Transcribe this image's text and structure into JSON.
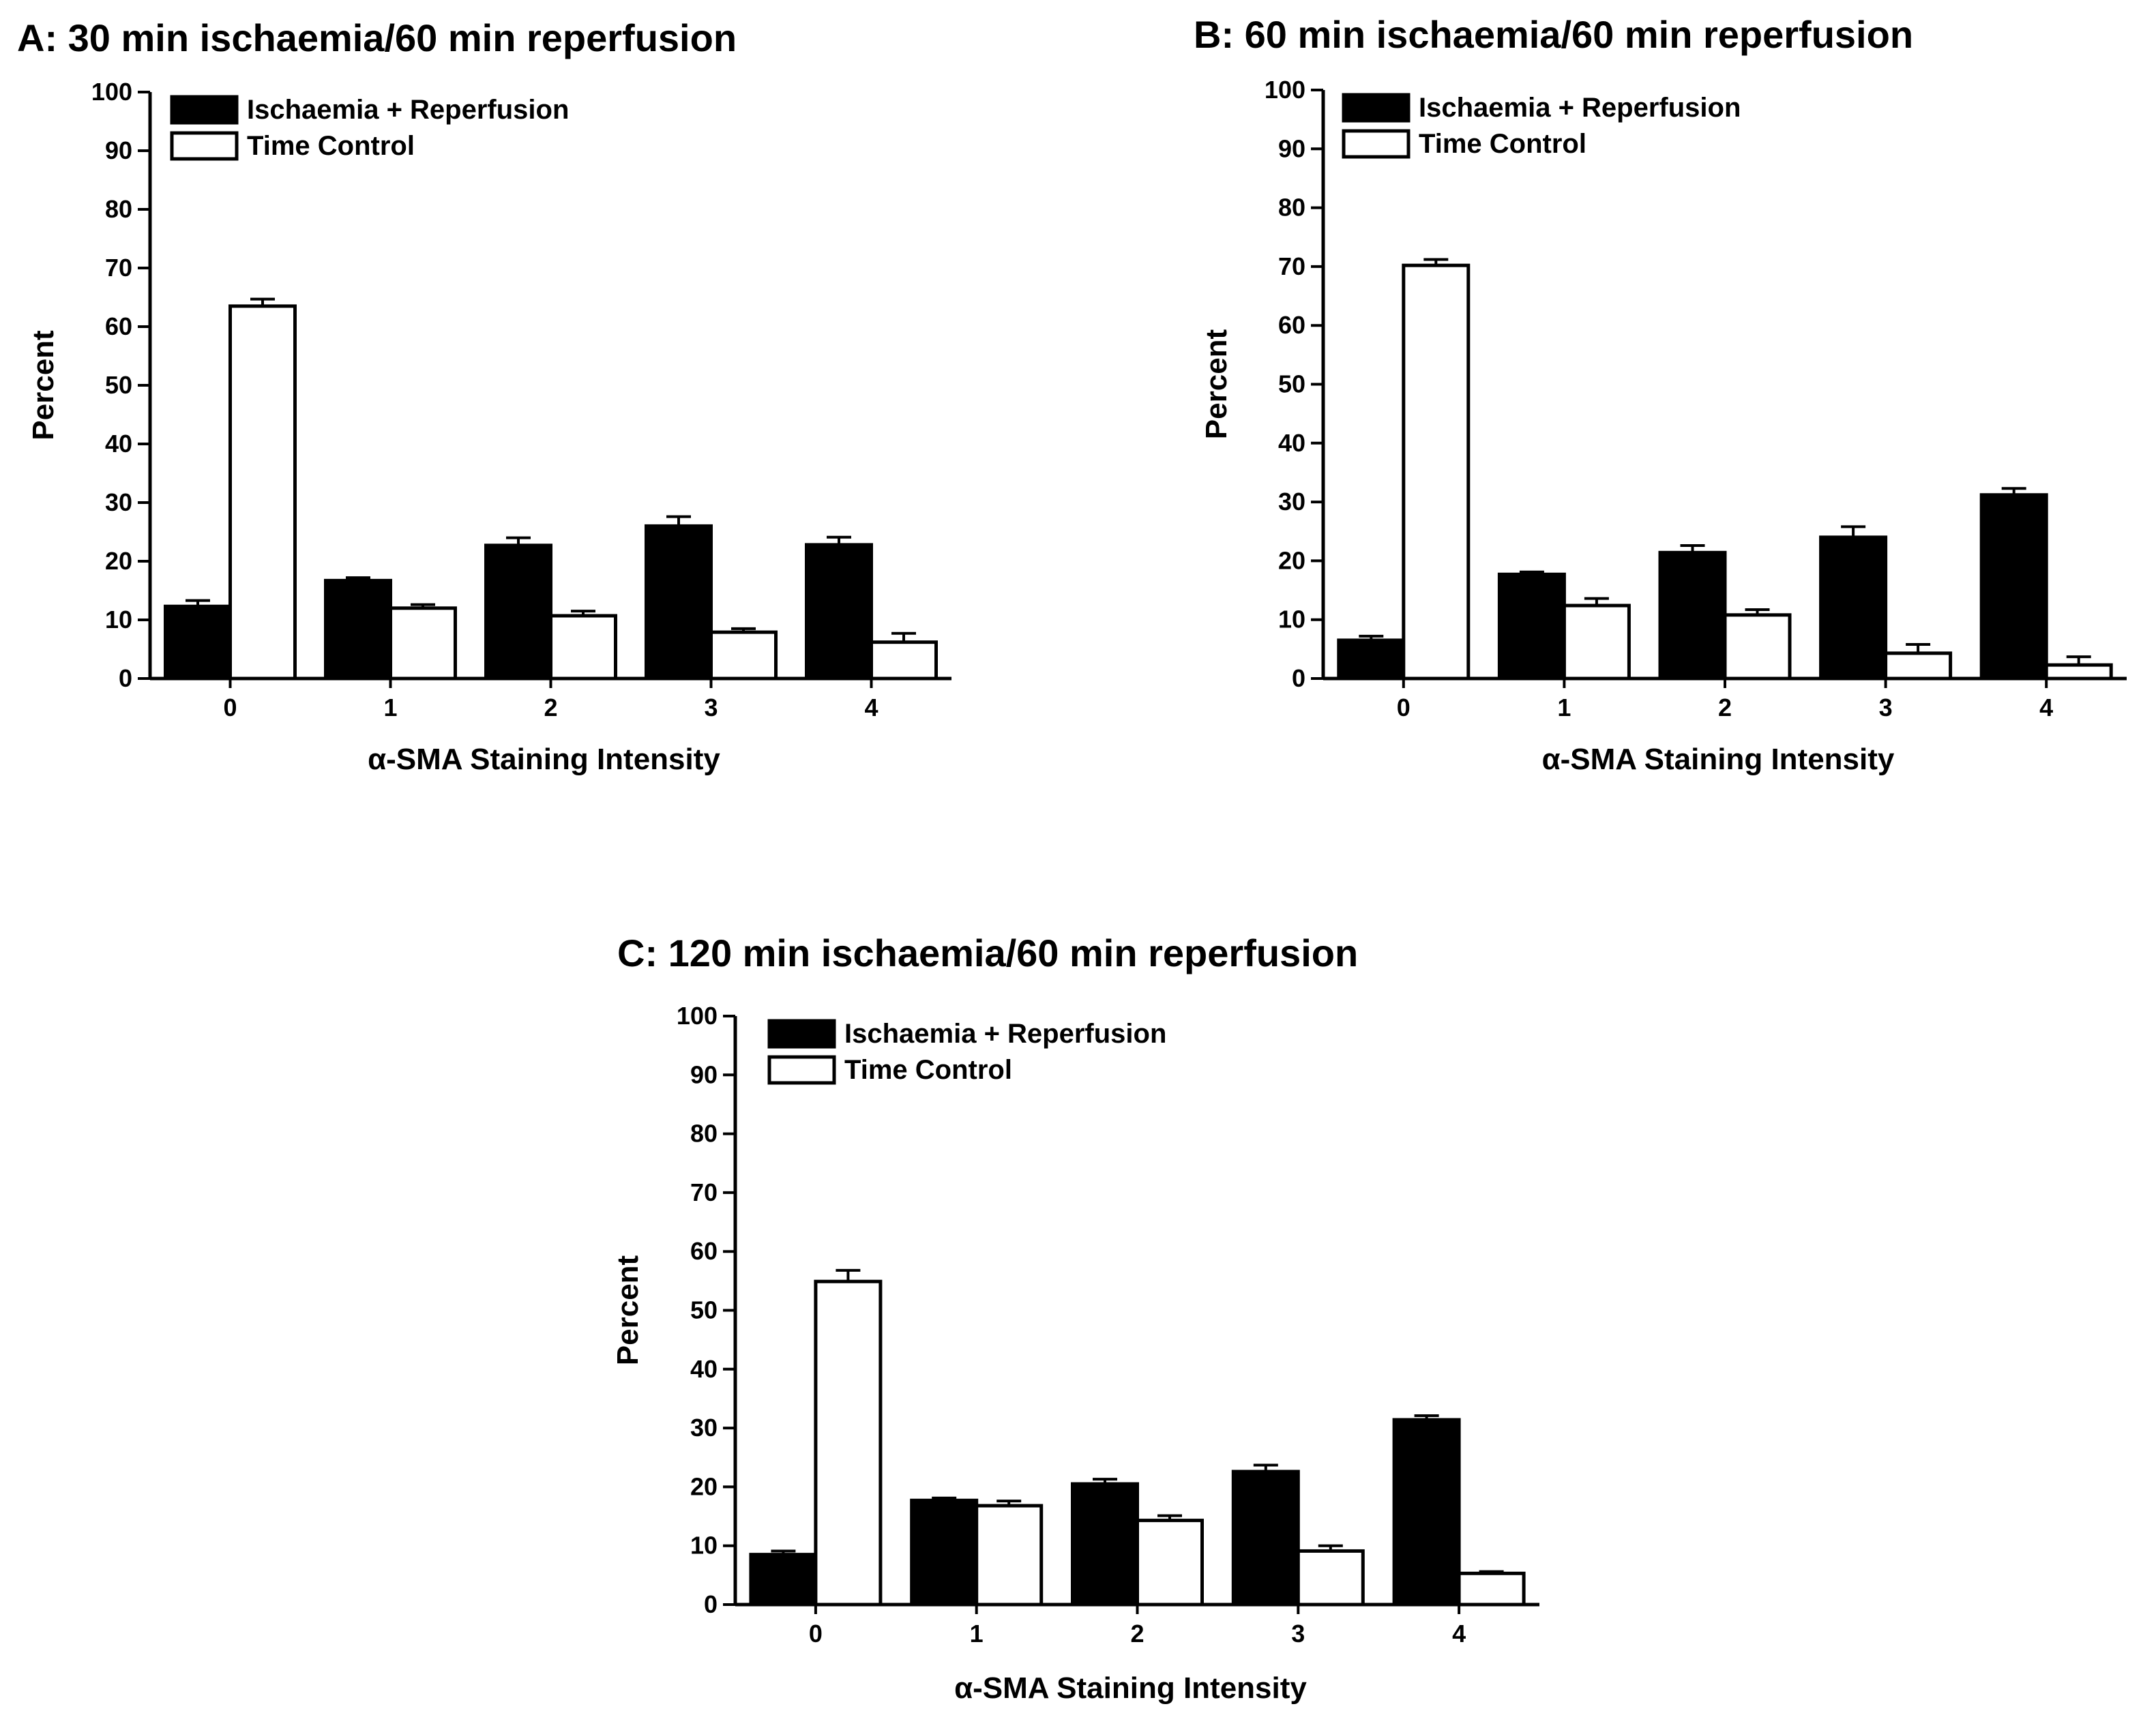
{
  "figure": {
    "legend": [
      {
        "key": "ir",
        "label": "Ischaemia + Reperfusion",
        "color": "#000000"
      },
      {
        "key": "tc",
        "label": "Time Control",
        "color": "#ffffff"
      }
    ]
  },
  "chart_data": [
    {
      "type": "bar",
      "title": "A: 30 min ischaemia/60 min reperfusion",
      "xlabel": "α-SMA Staining Intensity",
      "ylabel": "Percent",
      "categories": [
        "0",
        "1",
        "2",
        "3",
        "4"
      ],
      "ylim": [
        0,
        100
      ],
      "yticks": [
        0,
        10,
        20,
        30,
        40,
        50,
        60,
        70,
        80,
        90,
        100
      ],
      "legend_position": "top-left",
      "series": [
        {
          "name": "Ischaemia + Reperfusion",
          "fill": "#000000",
          "values": [
            12.3,
            16.7,
            22.7,
            26.0,
            22.8
          ],
          "errors": [
            1.0,
            0.5,
            1.3,
            1.6,
            1.3
          ]
        },
        {
          "name": "Time Control",
          "fill": "#ffffff",
          "values": [
            63.5,
            12.0,
            10.7,
            7.9,
            6.2
          ],
          "errors": [
            1.2,
            0.6,
            0.8,
            0.6,
            1.5
          ]
        }
      ]
    },
    {
      "type": "bar",
      "title": "B: 60 min ischaemia/60 min reperfusion",
      "xlabel": "α-SMA Staining Intensity",
      "ylabel": "Percent",
      "categories": [
        "0",
        "1",
        "2",
        "3",
        "4"
      ],
      "ylim": [
        0,
        100
      ],
      "yticks": [
        0,
        10,
        20,
        30,
        40,
        50,
        60,
        70,
        80,
        90,
        100
      ],
      "legend_position": "top-left",
      "series": [
        {
          "name": "Ischaemia + Reperfusion",
          "fill": "#000000",
          "values": [
            6.5,
            17.7,
            21.4,
            24.0,
            31.2
          ],
          "errors": [
            0.7,
            0.4,
            1.2,
            1.8,
            1.1
          ]
        },
        {
          "name": "Time Control",
          "fill": "#ffffff",
          "values": [
            70.2,
            12.4,
            10.8,
            4.3,
            2.3
          ],
          "errors": [
            1.0,
            1.2,
            0.9,
            1.5,
            1.4
          ]
        }
      ]
    },
    {
      "type": "bar",
      "title": "C: 120 min ischaemia/60 min reperfusion",
      "xlabel": "α-SMA Staining Intensity",
      "ylabel": "Percent",
      "categories": [
        "0",
        "1",
        "2",
        "3",
        "4"
      ],
      "ylim": [
        0,
        100
      ],
      "yticks": [
        0,
        10,
        20,
        30,
        40,
        50,
        60,
        70,
        80,
        90,
        100
      ],
      "legend_position": "top-left",
      "series": [
        {
          "name": "Ischaemia + Reperfusion",
          "fill": "#000000",
          "values": [
            8.5,
            17.7,
            20.5,
            22.6,
            31.4
          ],
          "errors": [
            0.6,
            0.4,
            0.8,
            1.1,
            0.7
          ]
        },
        {
          "name": "Time Control",
          "fill": "#ffffff",
          "values": [
            54.9,
            16.8,
            14.3,
            9.1,
            5.3
          ],
          "errors": [
            1.9,
            0.8,
            0.8,
            0.9,
            0.3
          ]
        }
      ]
    }
  ]
}
